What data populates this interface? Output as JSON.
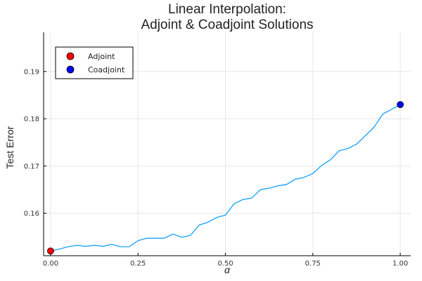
{
  "chart_data": {
    "type": "line",
    "title_lines": [
      "Linear Interpolation:",
      "Adjoint & Coadjoint Solutions"
    ],
    "xlabel": "α",
    "ylabel": "Test Error",
    "xlim": [
      -0.02,
      1.03
    ],
    "ylim": [
      0.151,
      0.1983
    ],
    "x_ticks": [
      0.0,
      0.25,
      0.5,
      0.75,
      1.0
    ],
    "x_tick_labels": [
      "0.00",
      "0.25",
      "0.50",
      "0.75",
      "1.00"
    ],
    "y_ticks": [
      0.16,
      0.17,
      0.18,
      0.19
    ],
    "y_tick_labels": [
      "0.16",
      "0.17",
      "0.18",
      "0.19"
    ],
    "grid": true,
    "legend_position": "top-left",
    "series": [
      {
        "color": "#009AFA",
        "x": [
          0.0,
          0.025,
          0.05,
          0.075,
          0.1,
          0.125,
          0.15,
          0.175,
          0.2,
          0.225,
          0.25,
          0.275,
          0.3,
          0.325,
          0.35,
          0.375,
          0.4,
          0.425,
          0.45,
          0.475,
          0.5,
          0.525,
          0.55,
          0.575,
          0.6,
          0.625,
          0.65,
          0.675,
          0.7,
          0.725,
          0.75,
          0.775,
          0.8,
          0.825,
          0.85,
          0.875,
          0.9,
          0.925,
          0.95,
          0.975,
          1.0
        ],
        "y": [
          0.152,
          0.1524,
          0.1529,
          0.1532,
          0.153,
          0.1532,
          0.153,
          0.1534,
          0.1529,
          0.1529,
          0.1542,
          0.1547,
          0.1547,
          0.1547,
          0.1556,
          0.1549,
          0.1553,
          0.1575,
          0.1581,
          0.1591,
          0.1596,
          0.162,
          0.1629,
          0.1632,
          0.165,
          0.1653,
          0.1658,
          0.1661,
          0.1672,
          0.1676,
          0.1684,
          0.1701,
          0.1713,
          0.1732,
          0.1737,
          0.1746,
          0.1764,
          0.1782,
          0.181,
          0.182,
          0.183
        ]
      }
    ],
    "markers": [
      {
        "name": "Adjoint",
        "x": 0.0,
        "y": 0.152,
        "color": "#ff0000"
      },
      {
        "name": "Coadjoint",
        "x": 1.0,
        "y": 0.183,
        "color": "#0000ff"
      }
    ]
  }
}
